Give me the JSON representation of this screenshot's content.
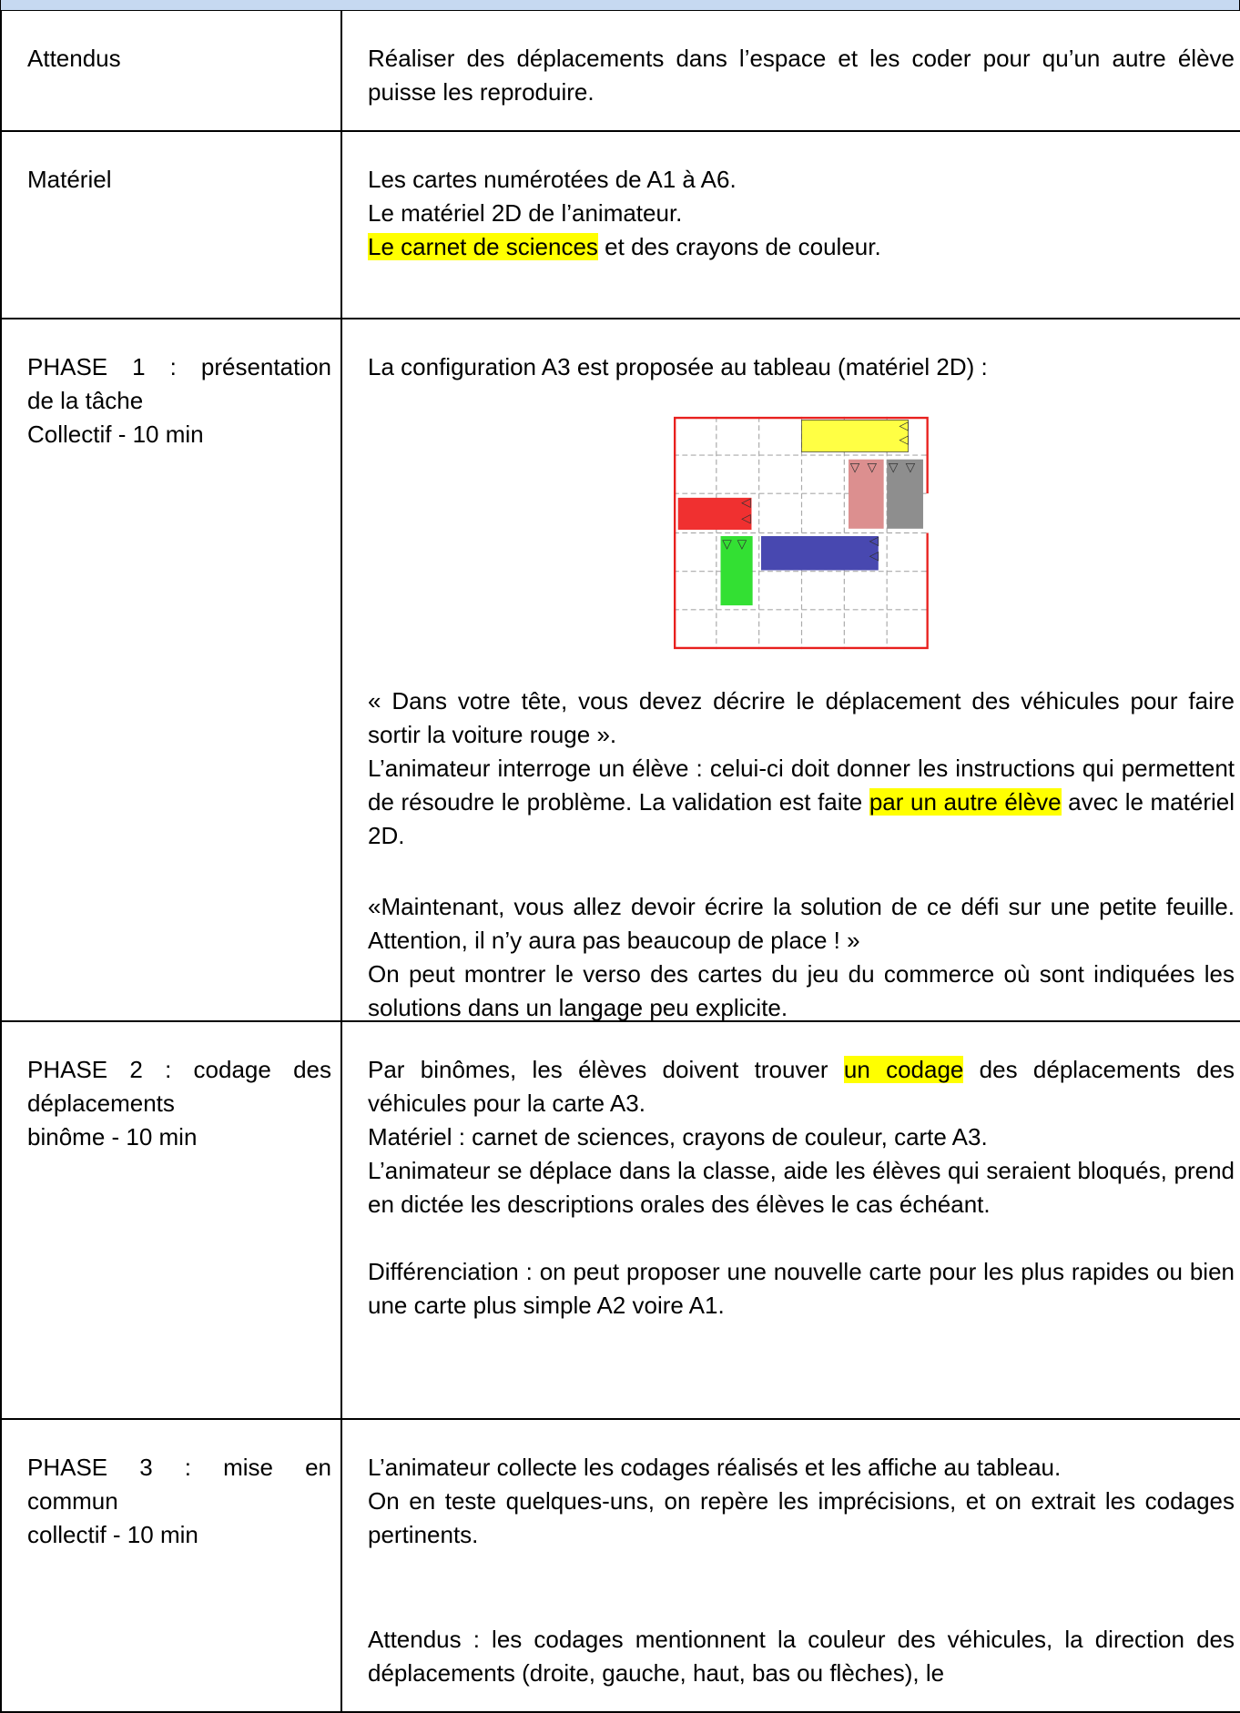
{
  "table": {
    "rows": [
      {
        "label": [
          [
            "Attendus"
          ]
        ],
        "content": [
          [
            [
              "Réaliser des déplacements dans l’espace et les coder pour qu’un autre élève puisse les reproduire."
            ]
          ]
        ]
      },
      {
        "label": [
          [
            "Matériel"
          ]
        ],
        "content": [
          [
            [
              "Les cartes numérotées de A1 à A6."
            ],
            [
              "Le matériel 2D de l’animateur."
            ],
            [
              {
                "text": "Le carnet de sciences",
                "highlight": "#ffff00"
              },
              " et des crayons de couleur."
            ]
          ]
        ]
      },
      {
        "label": [
          [
            "PHASE 1 : présentation",
            "de la tâche"
          ],
          [
            "Collectif - 10 min"
          ]
        ],
        "content": [
          [
            [
              "La configuration A3 est proposée au tableau (matériel 2D) :"
            ]
          ],
          [
            [
              "« Dans votre tête, vous devez décrire le déplacement des véhicules pour faire sortir la voiture rouge »."
            ],
            [
              "L’animateur interroge un élève : celui-ci doit donner les instructions qui permettent de résoudre le problème. La validation est faite ",
              {
                "text": "par un autre élève",
                "highlight": "#ffff00"
              },
              " avec le matériel 2D."
            ]
          ],
          [
            [
              "«Maintenant, vous allez devoir écrire la solution de ce défi sur une petite feuille. Attention, il n’y aura pas beaucoup de place ! »"
            ],
            [
              "On peut montrer le verso des cartes du jeu du commerce où sont indiquées les solutions dans un langage peu explicite."
            ]
          ]
        ]
      },
      {
        "label": [
          [
            "PHASE 2 : codage des",
            "déplacements"
          ],
          [
            "binôme - 10 min"
          ]
        ],
        "content": [
          [
            [
              "Par binômes, les élèves doivent trouver ",
              {
                "text": "un codage",
                "highlight": "#ffff00"
              },
              " des déplacements des véhicules pour la carte A3."
            ],
            [
              "Matériel : carnet de sciences, crayons de couleur, carte A3."
            ],
            [
              "L’animateur se déplace dans la classe, aide les élèves qui seraient bloqués, prend en dictée les descriptions orales des élèves le cas échéant."
            ]
          ],
          [
            [
              "Différenciation : on peut proposer une nouvelle carte pour les plus rapides ou bien une carte plus simple A2 voire A1."
            ]
          ]
        ]
      },
      {
        "label": [
          [
            "PHASE 3 : mise en",
            "commun"
          ],
          [
            "collectif - 10 min"
          ]
        ],
        "content": [
          [
            [
              "L’animateur collecte les codages réalisés et les affiche au tableau."
            ],
            [
              "On en teste quelques-uns, on repère les imprécisions, et on extrait les codages pertinents."
            ]
          ],
          [
            [
              "Attendus : les codages mentionnent la couleur des véhicules, la direction des déplacements (droite, gauche, haut, bas ou flèches), le"
            ]
          ]
        ]
      }
    ]
  }
}
